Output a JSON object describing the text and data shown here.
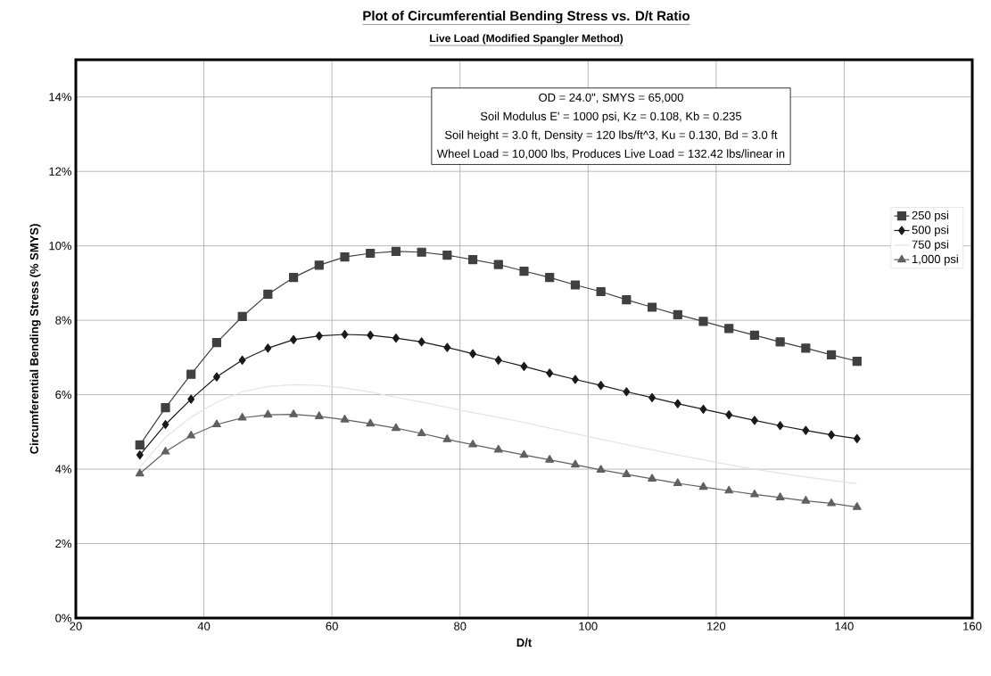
{
  "chart_data": {
    "type": "line",
    "title": "Plot of Circumferential Bending Stress vs. D/t Ratio",
    "subtitle": "Live  Load (Modified Spangler Method)",
    "xlabel": "D/t",
    "ylabel": "Circumferential Bending Stress (% SMYS)",
    "annotations": [
      "OD = 24.0\",  SMYS = 65,000",
      "Soil Modulus E' = 1000 psi,  Kz = 0.108,  Kb = 0.235",
      "Soil height = 3.0 ft,  Density = 120 lbs/ft^3, Ku = 0.130,  Bd = 3.0 ft",
      "Wheel Load = 10,000 lbs, Produces Live Load = 132.42 lbs/linear in"
    ],
    "x": [
      30,
      34,
      38,
      42,
      46,
      50,
      54,
      58,
      62,
      66,
      70,
      74,
      78,
      82,
      86,
      90,
      94,
      98,
      102,
      106,
      110,
      114,
      118,
      122,
      126,
      130,
      134,
      138,
      142
    ],
    "series": [
      {
        "name": "250 psi",
        "color": "#404040",
        "marker": "square",
        "values": [
          4.65,
          5.65,
          6.55,
          7.4,
          8.1,
          8.7,
          9.15,
          9.48,
          9.7,
          9.8,
          9.85,
          9.83,
          9.75,
          9.63,
          9.5,
          9.32,
          9.15,
          8.95,
          8.77,
          8.55,
          8.35,
          8.15,
          7.97,
          7.78,
          7.6,
          7.42,
          7.25,
          7.07,
          6.9
        ]
      },
      {
        "name": "500 psi",
        "color": "#1a1a1a",
        "marker": "diamond",
        "values": [
          4.38,
          5.2,
          5.88,
          6.48,
          6.93,
          7.25,
          7.48,
          7.58,
          7.62,
          7.6,
          7.52,
          7.42,
          7.27,
          7.1,
          6.93,
          6.76,
          6.58,
          6.41,
          6.25,
          6.08,
          5.92,
          5.76,
          5.61,
          5.46,
          5.31,
          5.17,
          5.04,
          4.92,
          4.82
        ]
      },
      {
        "name": "750 psi",
        "color": "#e4e4e4",
        "marker": "none",
        "values": [
          4.05,
          4.85,
          5.4,
          5.8,
          6.08,
          6.22,
          6.27,
          6.25,
          6.18,
          6.07,
          5.93,
          5.8,
          5.66,
          5.52,
          5.39,
          5.26,
          5.1,
          4.95,
          4.8,
          4.66,
          4.52,
          4.38,
          4.25,
          4.12,
          4.0,
          3.89,
          3.79,
          3.7,
          3.61
        ]
      },
      {
        "name": "1,000 psi",
        "color": "#606060",
        "marker": "triangle",
        "values": [
          3.88,
          4.47,
          4.9,
          5.2,
          5.38,
          5.46,
          5.47,
          5.42,
          5.33,
          5.22,
          5.1,
          4.96,
          4.8,
          4.66,
          4.52,
          4.38,
          4.25,
          4.12,
          3.98,
          3.86,
          3.74,
          3.62,
          3.52,
          3.42,
          3.32,
          3.24,
          3.15,
          3.08,
          2.98
        ]
      }
    ],
    "xlim": [
      20,
      160
    ],
    "xticks": [
      20,
      40,
      60,
      80,
      100,
      120,
      140,
      160
    ],
    "ylim": [
      0,
      15
    ],
    "yticks": [
      {
        "value": 0,
        "label": "0%"
      },
      {
        "value": 2,
        "label": "2%"
      },
      {
        "value": 4,
        "label": "4%"
      },
      {
        "value": 6,
        "label": "6%"
      },
      {
        "value": 8,
        "label": "8%"
      },
      {
        "value": 10,
        "label": "10%"
      },
      {
        "value": 12,
        "label": "12%"
      },
      {
        "value": 14,
        "label": "14%"
      }
    ],
    "grid": true,
    "legend": "right",
    "line_style": "solid"
  }
}
